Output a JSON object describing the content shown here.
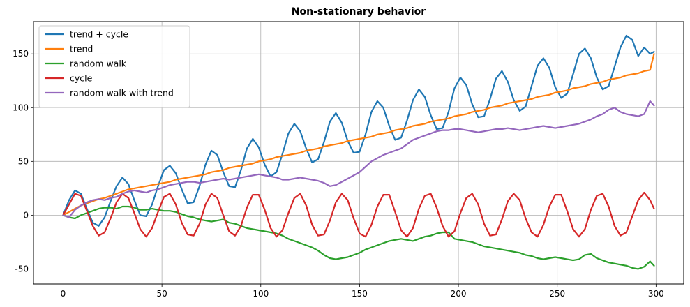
{
  "chart_data": {
    "type": "line",
    "title": "Non-stationary behavior",
    "xlabel": "",
    "ylabel": "",
    "xlim": [
      -15,
      314
    ],
    "ylim": [
      -64,
      180
    ],
    "x_ticks": [
      0,
      50,
      100,
      150,
      200,
      250,
      300
    ],
    "y_ticks": [
      -50,
      0,
      50,
      100,
      150
    ],
    "grid": true,
    "legend_position": "top-left",
    "x": [
      0,
      3,
      6,
      9,
      12,
      15,
      18,
      21,
      24,
      27,
      30,
      33,
      36,
      39,
      42,
      45,
      48,
      51,
      54,
      57,
      60,
      63,
      66,
      69,
      72,
      75,
      78,
      81,
      84,
      87,
      90,
      93,
      96,
      99,
      102,
      105,
      108,
      111,
      114,
      117,
      120,
      123,
      126,
      129,
      132,
      135,
      138,
      141,
      144,
      147,
      150,
      153,
      156,
      159,
      162,
      165,
      168,
      171,
      174,
      177,
      180,
      183,
      186,
      189,
      192,
      195,
      198,
      201,
      204,
      207,
      210,
      213,
      216,
      219,
      222,
      225,
      228,
      231,
      234,
      237,
      240,
      243,
      246,
      249,
      252,
      255,
      258,
      261,
      264,
      267,
      270,
      273,
      276,
      279,
      282,
      285,
      288,
      291,
      294,
      297,
      299
    ],
    "series": [
      {
        "name": "trend + cycle",
        "color": "#1f77b4",
        "values": [
          0,
          14,
          23,
          20,
          6,
          -7,
          -10,
          -2,
          13,
          27,
          35,
          29,
          14,
          0,
          -1,
          10,
          27,
          42,
          46,
          39,
          24,
          11,
          12,
          27,
          47,
          60,
          56,
          40,
          27,
          26,
          42,
          62,
          71,
          63,
          47,
          36,
          40,
          57,
          76,
          85,
          78,
          62,
          49,
          52,
          68,
          87,
          95,
          86,
          69,
          58,
          59,
          75,
          96,
          106,
          100,
          83,
          70,
          72,
          88,
          107,
          117,
          110,
          93,
          80,
          81,
          96,
          118,
          128,
          121,
          103,
          91,
          92,
          108,
          127,
          134,
          124,
          107,
          97,
          101,
          120,
          139,
          146,
          137,
          119,
          109,
          113,
          131,
          150,
          155,
          146,
          128,
          117,
          120,
          138,
          156,
          167,
          163,
          148,
          156,
          150,
          152
        ]
      },
      {
        "name": "trend",
        "color": "#ff7f0e",
        "values": [
          0,
          3,
          6,
          9,
          11,
          13,
          15,
          16,
          18,
          20,
          22,
          24,
          25,
          26,
          27,
          28,
          29,
          30,
          31,
          33,
          34,
          35,
          36,
          37,
          38,
          40,
          41,
          42,
          44,
          45,
          46,
          47,
          48,
          50,
          51,
          52,
          54,
          55,
          56,
          57,
          58,
          60,
          61,
          62,
          64,
          65,
          66,
          67,
          69,
          70,
          71,
          72,
          73,
          75,
          76,
          77,
          79,
          80,
          81,
          83,
          84,
          85,
          87,
          88,
          89,
          90,
          92,
          93,
          94,
          96,
          97,
          98,
          100,
          101,
          102,
          104,
          105,
          106,
          107,
          108,
          110,
          111,
          112,
          114,
          115,
          116,
          118,
          119,
          120,
          122,
          123,
          124,
          126,
          127,
          128,
          130,
          131,
          132,
          134,
          135,
          150
        ]
      },
      {
        "name": "random walk",
        "color": "#2ca02c",
        "values": [
          0,
          -2,
          -3,
          0,
          2,
          4,
          6,
          7,
          7,
          6,
          8,
          8,
          7,
          5,
          5,
          6,
          5,
          4,
          4,
          3,
          1,
          -1,
          -2,
          -4,
          -5,
          -6,
          -5,
          -4,
          -7,
          -8,
          -10,
          -12,
          -13,
          -14,
          -15,
          -16,
          -17,
          -19,
          -22,
          -24,
          -26,
          -28,
          -30,
          -33,
          -37,
          -40,
          -41,
          -40,
          -39,
          -37,
          -35,
          -32,
          -30,
          -28,
          -26,
          -24,
          -23,
          -22,
          -23,
          -24,
          -22,
          -20,
          -19,
          -17,
          -16,
          -16,
          -22,
          -23,
          -24,
          -25,
          -27,
          -29,
          -30,
          -31,
          -32,
          -33,
          -34,
          -35,
          -37,
          -38,
          -40,
          -41,
          -40,
          -39,
          -40,
          -41,
          -42,
          -41,
          -37,
          -36,
          -40,
          -42,
          -44,
          -45,
          -46,
          -47,
          -49,
          -50,
          -48,
          -43,
          -47
        ]
      },
      {
        "name": "cycle",
        "color": "#d62728",
        "values": [
          0,
          10,
          20,
          18,
          4,
          -10,
          -19,
          -16,
          -3,
          12,
          20,
          16,
          2,
          -13,
          -20,
          -12,
          3,
          17,
          20,
          10,
          -7,
          -18,
          -19,
          -8,
          10,
          20,
          16,
          0,
          -15,
          -19,
          -10,
          7,
          19,
          19,
          5,
          -12,
          -20,
          -14,
          2,
          16,
          20,
          9,
          -9,
          -19,
          -18,
          -5,
          12,
          20,
          14,
          -3,
          -17,
          -20,
          -9,
          8,
          19,
          19,
          3,
          -14,
          -20,
          -12,
          6,
          18,
          20,
          7,
          -10,
          -20,
          -15,
          2,
          16,
          20,
          10,
          -8,
          -19,
          -18,
          -4,
          13,
          20,
          14,
          -3,
          -16,
          -20,
          -9,
          8,
          19,
          19,
          4,
          -13,
          -20,
          -13,
          5,
          18,
          20,
          8,
          -10,
          -19,
          -16,
          -1,
          14,
          21,
          14,
          6
        ]
      },
      {
        "name": "random walk with trend",
        "color": "#9467bd",
        "values": [
          0,
          -2,
          5,
          9,
          12,
          14,
          15,
          14,
          16,
          17,
          20,
          22,
          23,
          22,
          21,
          23,
          24,
          26,
          28,
          29,
          30,
          31,
          31,
          30,
          31,
          32,
          33,
          34,
          33,
          34,
          35,
          36,
          37,
          38,
          37,
          36,
          35,
          33,
          33,
          34,
          35,
          34,
          33,
          32,
          30,
          27,
          28,
          31,
          34,
          37,
          40,
          45,
          50,
          53,
          56,
          58,
          60,
          62,
          66,
          70,
          72,
          74,
          76,
          78,
          79,
          79,
          80,
          80,
          79,
          78,
          77,
          78,
          79,
          80,
          80,
          81,
          80,
          79,
          80,
          81,
          82,
          83,
          82,
          81,
          82,
          83,
          84,
          85,
          87,
          89,
          92,
          94,
          98,
          100,
          96,
          94,
          93,
          92,
          94,
          106,
          102
        ]
      }
    ]
  }
}
